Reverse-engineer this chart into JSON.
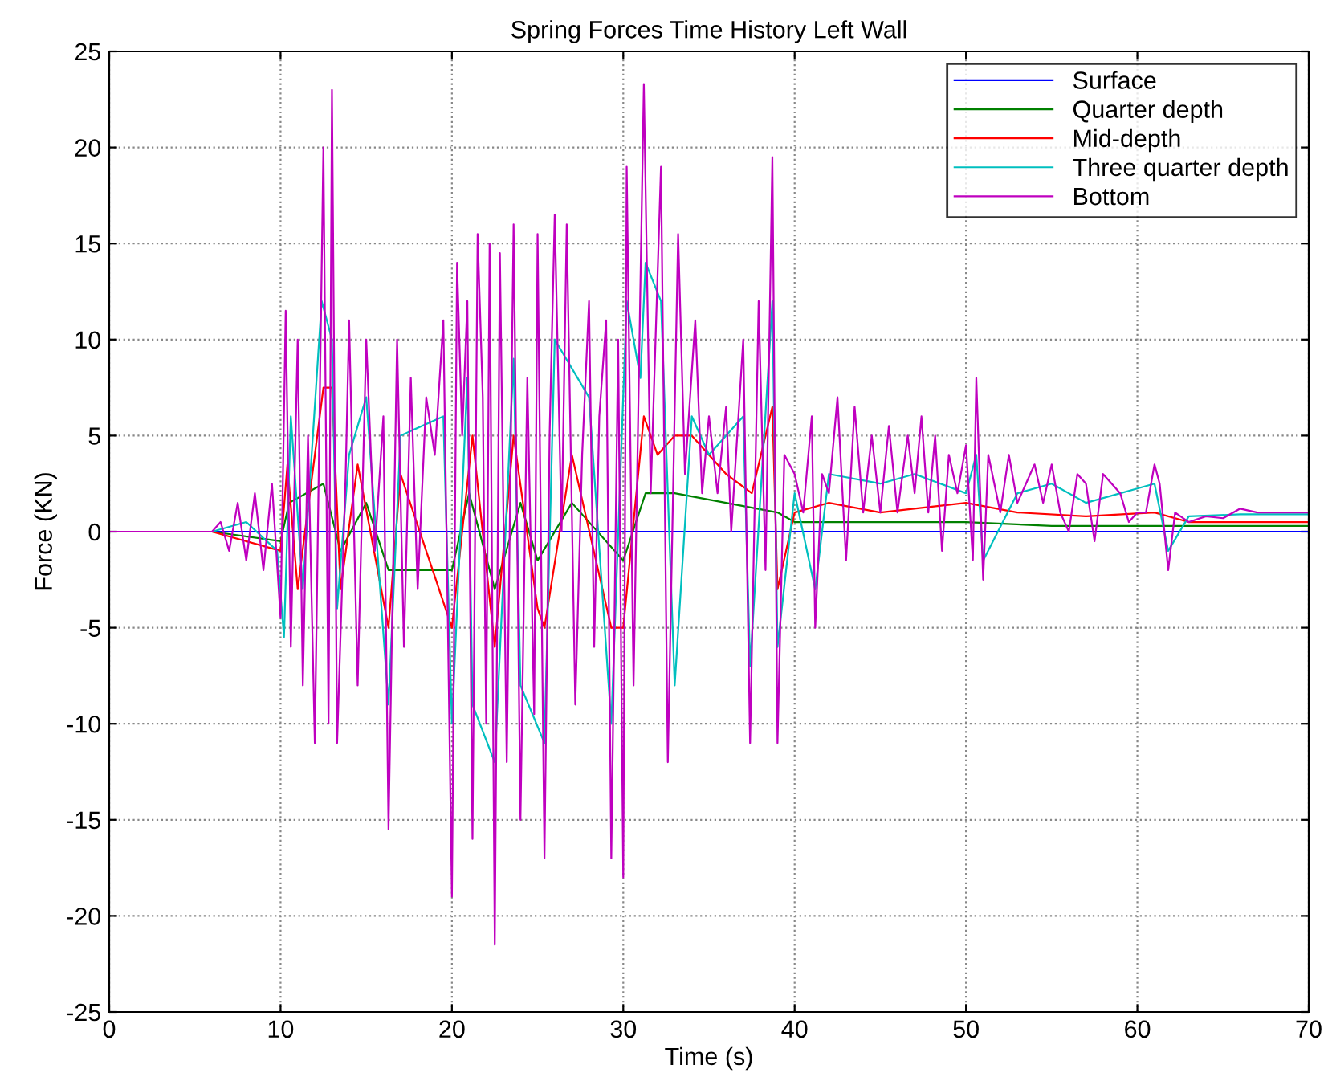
{
  "chart_data": {
    "type": "line",
    "title": "Spring Forces Time History Left Wall",
    "xlabel": "Time (s)",
    "ylabel": "Force (KN)",
    "xlim": [
      0,
      70
    ],
    "xticks": [
      0,
      10,
      20,
      30,
      40,
      50,
      60,
      70
    ],
    "ylim": [
      -25,
      25
    ],
    "yticks": [
      -25,
      -20,
      -15,
      -10,
      -5,
      0,
      5,
      10,
      15,
      20,
      25
    ],
    "grid": true,
    "legend": "top right",
    "line_style": "solid",
    "marker": "none",
    "series": [
      {
        "name": "Surface",
        "color": "#0000ff",
        "x": [
          0,
          70
        ],
        "values": [
          0,
          0
        ]
      },
      {
        "name": "Quarter depth",
        "color": "#008000",
        "x": [
          0,
          6,
          10,
          10.5,
          12.5,
          13.5,
          15,
          16.3,
          20,
          21,
          22.5,
          24,
          25,
          27,
          30,
          31.3,
          33,
          36,
          39,
          40,
          45,
          50,
          55,
          60,
          65,
          70
        ],
        "values": [
          0,
          0,
          -0.5,
          1.5,
          2.5,
          -1,
          1.5,
          -2,
          -2,
          2,
          -3,
          1.5,
          -1.5,
          1.5,
          -1.5,
          2,
          2,
          1.5,
          1,
          0.5,
          0.5,
          0.5,
          0.3,
          0.3,
          0.3,
          0.3
        ]
      },
      {
        "name": "Mid-depth",
        "color": "#ff0000",
        "x": [
          0,
          6,
          10,
          10.4,
          11,
          12.5,
          13,
          13.5,
          14.5,
          16.3,
          17,
          20,
          21.2,
          22.5,
          23.6,
          25,
          25.4,
          27,
          29.3,
          30,
          31.2,
          32,
          33,
          34,
          36,
          37.5,
          38.7,
          39,
          40,
          42,
          45,
          50,
          53,
          57,
          61,
          63,
          70
        ],
        "values": [
          0,
          0,
          -1,
          3.5,
          -3,
          7.5,
          7.5,
          -3,
          3.5,
          -5,
          3,
          -5,
          5,
          -6,
          5,
          -4,
          -5,
          4,
          -5,
          -5,
          6,
          4,
          5,
          5,
          3,
          2,
          6.5,
          -3,
          1,
          1.5,
          1,
          1.5,
          1,
          0.8,
          1,
          0.5,
          0.5
        ]
      },
      {
        "name": "Three quarter depth",
        "color": "#00bfbf",
        "x": [
          0,
          6,
          8,
          9.8,
          10.2,
          10.6,
          11.3,
          12.4,
          13,
          13.3,
          14,
          15,
          16.3,
          17,
          19.5,
          20,
          20.9,
          21.2,
          22.5,
          23.6,
          24,
          25.4,
          26,
          28,
          29.3,
          30.2,
          31,
          31.3,
          32.2,
          33,
          34,
          35,
          37,
          37.4,
          38.7,
          39,
          40,
          41.2,
          42,
          45,
          47,
          50,
          50.6,
          51,
          53,
          55,
          57,
          61,
          61.8,
          63,
          66,
          70
        ],
        "values": [
          0,
          0,
          0.5,
          -1,
          -5.5,
          6,
          -3,
          12,
          10,
          -4,
          4,
          7,
          -9,
          5,
          6,
          -10,
          8,
          -9,
          -12,
          9,
          -8,
          -11,
          10,
          7,
          -10,
          12,
          8,
          14,
          12,
          -8,
          6,
          4,
          6,
          -7,
          12,
          -6,
          2,
          -3,
          3,
          2.5,
          3,
          2,
          4,
          -1.5,
          2,
          2.5,
          1.5,
          2.5,
          -1,
          0.8,
          0.9,
          0.9
        ]
      },
      {
        "name": "Bottom",
        "color": "#bf00bf",
        "x": [
          0,
          6,
          6.5,
          7,
          7.5,
          8,
          8.5,
          9,
          9.5,
          10,
          10.3,
          10.6,
          11,
          11.3,
          11.6,
          12,
          12.5,
          12.8,
          13,
          13.3,
          13.8,
          14,
          14.5,
          15,
          15.5,
          16,
          16.3,
          16.8,
          17.2,
          17.6,
          18,
          18.5,
          19,
          19.5,
          20,
          20.3,
          20.6,
          20.9,
          21.2,
          21.5,
          21.8,
          22,
          22.2,
          22.5,
          22.8,
          23.2,
          23.6,
          24,
          24.4,
          24.8,
          25,
          25.4,
          25.7,
          26,
          26.4,
          26.7,
          27.2,
          27.6,
          28,
          28.3,
          28.6,
          29,
          29.3,
          29.7,
          30,
          30.2,
          30.6,
          31.2,
          31.6,
          32.2,
          32.6,
          33.2,
          33.6,
          34.2,
          34.6,
          35,
          35.5,
          36,
          36.3,
          37,
          37.4,
          37.9,
          38.3,
          38.7,
          39,
          39.4,
          40,
          40.5,
          41,
          41.2,
          41.6,
          42,
          42.5,
          43,
          43.5,
          44,
          44.5,
          45,
          45.5,
          46,
          46.6,
          47,
          47.4,
          47.8,
          48.2,
          48.6,
          49,
          49.5,
          50,
          50.4,
          50.6,
          51,
          51.3,
          52,
          52.5,
          53,
          54,
          54.5,
          55,
          55.5,
          56,
          56.5,
          57,
          57.5,
          58,
          59,
          59.5,
          60,
          60.5,
          61,
          61.3,
          61.8,
          62.2,
          63,
          64,
          65,
          66,
          67,
          70
        ],
        "values": [
          0,
          0,
          0.5,
          -1,
          1.5,
          -1.5,
          2,
          -2,
          2.5,
          -4.5,
          11.5,
          -6,
          10,
          -8,
          5,
          -11,
          20,
          -10,
          23,
          -11,
          3,
          11,
          -8,
          10,
          -1,
          6,
          -15.5,
          10,
          -6,
          8,
          -3,
          7,
          4,
          11,
          -19,
          14,
          5,
          12,
          -16,
          15.5,
          7,
          -10,
          15,
          -21.5,
          14.5,
          -12,
          16,
          -15,
          8,
          -9.5,
          15.5,
          -17,
          5,
          16.5,
          0,
          16,
          -9,
          4,
          12,
          -6,
          6,
          11,
          -17,
          10,
          -18,
          19,
          -8,
          23.3,
          2,
          19,
          -12,
          15.5,
          3,
          11,
          2,
          6,
          2,
          6.5,
          0,
          10,
          -11,
          12,
          -2,
          19.5,
          -11,
          4,
          3,
          1,
          6,
          -5,
          3,
          2,
          7,
          -1.5,
          6.5,
          1,
          5,
          1,
          5.5,
          1,
          5,
          2,
          6,
          1,
          5,
          -1,
          4,
          2,
          4.5,
          -1.5,
          8,
          -2.5,
          4,
          1,
          4,
          1.5,
          3.5,
          1.5,
          3.5,
          1,
          0,
          3,
          2.5,
          -0.5,
          3,
          2,
          0.5,
          1,
          1,
          3.5,
          2.5,
          -2,
          1,
          0.5,
          0.8,
          0.7,
          1.2,
          1,
          1
        ]
      }
    ]
  }
}
